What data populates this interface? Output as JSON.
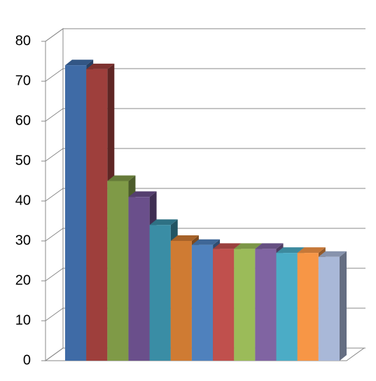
{
  "chart_data": {
    "type": "bar3d",
    "categories": [
      null,
      null,
      null,
      null,
      null,
      null,
      null,
      null,
      null,
      null,
      null,
      null,
      null
    ],
    "values": [
      74,
      73,
      45,
      41,
      34,
      30,
      29,
      28,
      28,
      28,
      27,
      27,
      26
    ],
    "colors": [
      "#3f6ba6",
      "#9e3f3c",
      "#7f9a47",
      "#6a4f8b",
      "#3a8da5",
      "#cf7b33",
      "#4f81bd",
      "#c0504d",
      "#9bbb59",
      "#8064a2",
      "#4bacc6",
      "#f79646",
      "#a9b8d8"
    ],
    "ylim": [
      0,
      80
    ],
    "yticks": [
      0,
      10,
      20,
      30,
      40,
      50,
      60,
      70,
      80
    ],
    "grid": true
  }
}
